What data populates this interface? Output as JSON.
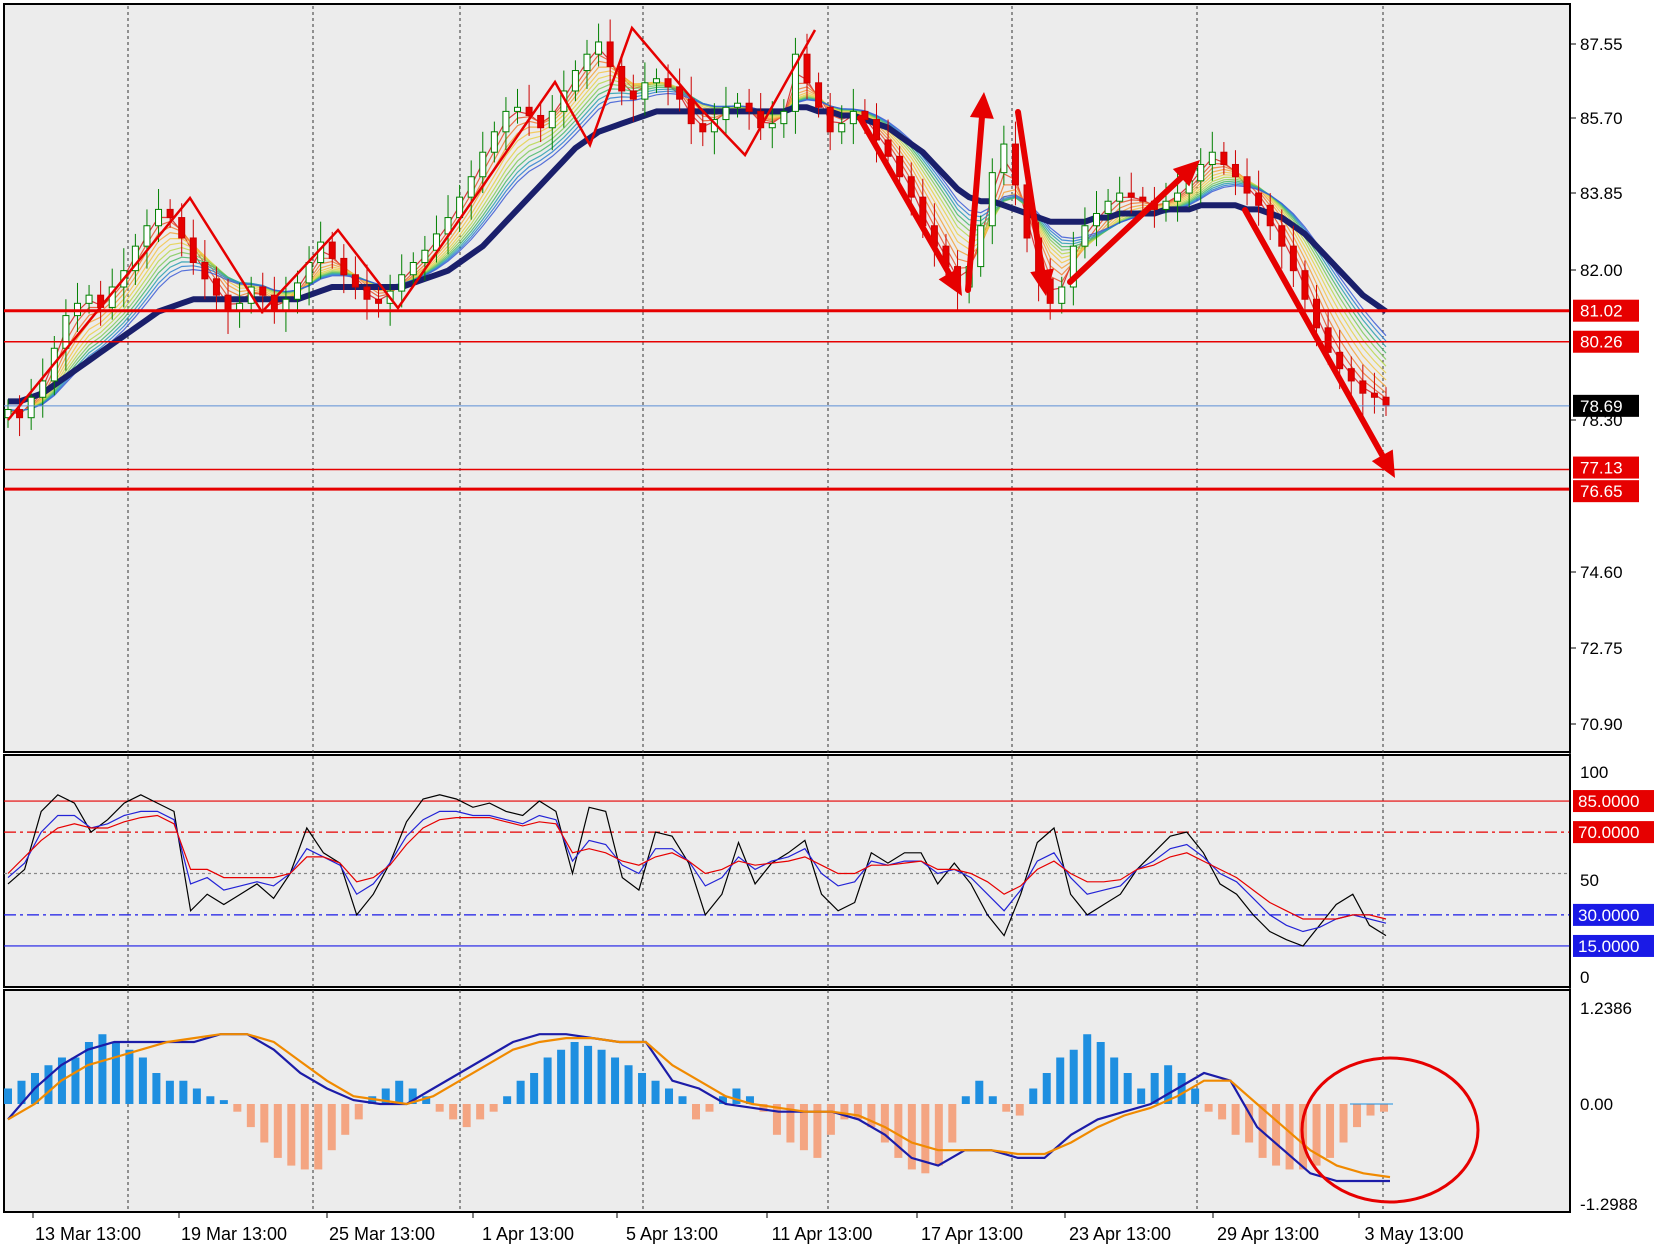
{
  "chart_data": [
    {
      "name": "price",
      "type": "candlestick",
      "x_ticks": [
        "13 Mar 13:00",
        "19 Mar 13:00",
        "25 Mar 13:00",
        "1 Apr 13:00",
        "5 Apr 13:00",
        "11 Apr 13:00",
        "17 Apr 13:00",
        "23 Apr 13:00",
        "29 Apr 13:00",
        "3 May 13:00"
      ],
      "y_ticks": [
        "87.55",
        "85.70",
        "83.85",
        "82.00",
        "78.30",
        "74.60",
        "72.75",
        "70.90"
      ],
      "ylim": [
        69.9,
        88.6
      ],
      "current_price": {
        "value": 78.69,
        "label": "78.69",
        "color": "#5b8fd6"
      },
      "levels": [
        {
          "value": 81.02,
          "label": "81.02",
          "color": "#e60000",
          "thick": true
        },
        {
          "value": 80.26,
          "label": "80.26",
          "color": "#e60000",
          "thick": false
        },
        {
          "value": 77.13,
          "label": "77.13",
          "color": "#e60000",
          "thick": false
        },
        {
          "value": 76.65,
          "label": "76.65",
          "color": "#e60000",
          "thick": true
        }
      ],
      "close_series": [
        78.6,
        78.4,
        78.9,
        79.3,
        80.1,
        80.9,
        81.2,
        81.4,
        81.1,
        81.6,
        82.0,
        82.6,
        83.1,
        83.5,
        83.3,
        82.8,
        82.2,
        81.8,
        81.4,
        81.0,
        81.2,
        81.6,
        81.4,
        81.0,
        81.3,
        81.7,
        82.2,
        82.7,
        82.3,
        81.9,
        81.6,
        81.3,
        81.2,
        81.5,
        81.9,
        82.2,
        82.5,
        82.9,
        83.3,
        83.8,
        84.3,
        84.9,
        85.4,
        85.9,
        86.0,
        85.8,
        85.5,
        85.9,
        86.4,
        86.9,
        87.3,
        87.6,
        87.0,
        86.4,
        86.2,
        86.6,
        86.7,
        86.5,
        86.2,
        85.6,
        85.4,
        85.7,
        86.0,
        86.1,
        85.9,
        85.5,
        85.6,
        85.9,
        87.3,
        86.6,
        86.0,
        85.4,
        85.6,
        85.9,
        85.7,
        85.2,
        84.8,
        84.3,
        83.8,
        83.1,
        82.6,
        82.1,
        81.6,
        82.1,
        83.1,
        84.4,
        85.1,
        84.1,
        82.8,
        81.8,
        81.2,
        81.6,
        82.6,
        83.1,
        83.4,
        83.7,
        83.9,
        83.8,
        83.7,
        83.5,
        83.7,
        83.9,
        84.2,
        84.6,
        84.9,
        84.6,
        84.3,
        83.9,
        83.6,
        83.1,
        82.6,
        82.0,
        81.3,
        80.6,
        80.0,
        79.6,
        79.3,
        79.0,
        78.9,
        78.69
      ],
      "ema_series": [
        78.8,
        78.8,
        78.9,
        79.0,
        79.2,
        79.4,
        79.6,
        79.8,
        80.0,
        80.2,
        80.4,
        80.6,
        80.8,
        81.0,
        81.1,
        81.2,
        81.3,
        81.3,
        81.3,
        81.3,
        81.3,
        81.3,
        81.3,
        81.3,
        81.3,
        81.3,
        81.4,
        81.5,
        81.6,
        81.6,
        81.6,
        81.6,
        81.6,
        81.6,
        81.6,
        81.7,
        81.8,
        81.9,
        82.0,
        82.2,
        82.4,
        82.6,
        82.9,
        83.2,
        83.5,
        83.8,
        84.1,
        84.4,
        84.7,
        85.0,
        85.2,
        85.4,
        85.5,
        85.6,
        85.7,
        85.8,
        85.9,
        85.9,
        85.9,
        85.9,
        85.9,
        85.9,
        85.9,
        85.9,
        85.9,
        85.9,
        85.9,
        85.9,
        86.0,
        86.0,
        85.9,
        85.9,
        85.8,
        85.8,
        85.7,
        85.6,
        85.5,
        85.3,
        85.1,
        84.9,
        84.6,
        84.3,
        84.0,
        83.8,
        83.7,
        83.7,
        83.6,
        83.5,
        83.4,
        83.3,
        83.2,
        83.2,
        83.2,
        83.2,
        83.3,
        83.3,
        83.4,
        83.4,
        83.4,
        83.4,
        83.5,
        83.5,
        83.5,
        83.6,
        83.6,
        83.6,
        83.6,
        83.5,
        83.5,
        83.4,
        83.3,
        83.1,
        82.9,
        82.6,
        82.3,
        82.0,
        81.7,
        81.4,
        81.2,
        81.0
      ],
      "annotations": [
        "zigzag",
        "arrows"
      ]
    },
    {
      "name": "stochastic",
      "type": "line",
      "y_ticks": [
        "100",
        "50",
        "0"
      ],
      "ylim": [
        0,
        100
      ],
      "levels": [
        {
          "value": 85,
          "label": "85.0000",
          "color": "#e60000",
          "style": "solid"
        },
        {
          "value": 70,
          "label": "70.0000",
          "color": "#e60000",
          "style": "dashdot"
        },
        {
          "value": 50,
          "label": "",
          "color": "#888888",
          "style": "dotted"
        },
        {
          "value": 30,
          "label": "30.0000",
          "color": "#1a1ae6",
          "style": "dashdot"
        },
        {
          "value": 15,
          "label": "15.0000",
          "color": "#1a1ae6",
          "style": "solid"
        }
      ],
      "series": [
        {
          "name": "main",
          "color": "#000000",
          "values": [
            45,
            52,
            80,
            88,
            84,
            70,
            76,
            84,
            88,
            84,
            80,
            32,
            40,
            35,
            40,
            45,
            38,
            50,
            72,
            60,
            55,
            30,
            40,
            55,
            75,
            86,
            88,
            86,
            82,
            84,
            80,
            78,
            85,
            80,
            50,
            82,
            80,
            48,
            42,
            70,
            68,
            55,
            30,
            40,
            65,
            45,
            55,
            60,
            66,
            40,
            32,
            36,
            60,
            55,
            60,
            60,
            45,
            55,
            45,
            30,
            20,
            40,
            65,
            72,
            40,
            30,
            35,
            40,
            52,
            60,
            68,
            70,
            60,
            45,
            40,
            30,
            22,
            18,
            15,
            25,
            35,
            40,
            25,
            20
          ]
        },
        {
          "name": "signal-1",
          "color": "#2323d6",
          "values": [
            48,
            55,
            70,
            78,
            78,
            72,
            74,
            78,
            80,
            80,
            76,
            45,
            48,
            42,
            44,
            46,
            44,
            50,
            62,
            58,
            54,
            40,
            45,
            55,
            68,
            76,
            80,
            80,
            78,
            78,
            76,
            74,
            78,
            76,
            56,
            66,
            64,
            54,
            50,
            62,
            62,
            56,
            44,
            48,
            58,
            52,
            56,
            58,
            62,
            50,
            44,
            46,
            56,
            54,
            56,
            56,
            50,
            52,
            48,
            40,
            32,
            42,
            56,
            60,
            48,
            40,
            42,
            44,
            52,
            56,
            62,
            64,
            58,
            50,
            46,
            38,
            30,
            25,
            22,
            24,
            28,
            30,
            28,
            26
          ]
        },
        {
          "name": "signal-2",
          "color": "#e60000",
          "values": [
            50,
            58,
            66,
            72,
            74,
            72,
            72,
            75,
            77,
            78,
            74,
            52,
            52,
            48,
            48,
            48,
            48,
            50,
            58,
            58,
            55,
            46,
            48,
            54,
            64,
            72,
            76,
            77,
            77,
            77,
            75,
            73,
            75,
            74,
            60,
            62,
            60,
            56,
            54,
            58,
            60,
            56,
            50,
            52,
            56,
            54,
            55,
            56,
            58,
            54,
            50,
            50,
            54,
            54,
            55,
            56,
            52,
            52,
            50,
            46,
            40,
            44,
            52,
            56,
            50,
            46,
            46,
            47,
            52,
            54,
            58,
            60,
            56,
            52,
            48,
            42,
            36,
            32,
            28,
            28,
            28,
            30,
            30,
            28
          ]
        }
      ]
    },
    {
      "name": "macd",
      "type": "bar+line",
      "y_ticks": [
        "1.2386",
        "0.00",
        "-1.2988"
      ],
      "ylim": [
        -1.2988,
        1.2386
      ],
      "histogram": [
        0.2,
        0.3,
        0.4,
        0.5,
        0.6,
        0.6,
        0.8,
        0.9,
        0.8,
        0.7,
        0.6,
        0.4,
        0.3,
        0.3,
        0.2,
        0.1,
        0.05,
        -0.1,
        -0.3,
        -0.5,
        -0.7,
        -0.8,
        -0.85,
        -0.85,
        -0.6,
        -0.4,
        -0.2,
        0.1,
        0.2,
        0.3,
        0.2,
        0.1,
        -0.1,
        -0.2,
        -0.3,
        -0.2,
        -0.1,
        0.1,
        0.3,
        0.4,
        0.6,
        0.7,
        0.8,
        0.75,
        0.7,
        0.6,
        0.5,
        0.4,
        0.3,
        0.2,
        0.1,
        -0.2,
        -0.1,
        0.1,
        0.2,
        0.1,
        -0.1,
        -0.4,
        -0.5,
        -0.6,
        -0.7,
        -0.4,
        -0.2,
        -0.2,
        -0.3,
        -0.5,
        -0.7,
        -0.85,
        -0.9,
        -0.8,
        -0.5,
        0.1,
        0.3,
        0.1,
        -0.1,
        -0.15,
        0.2,
        0.4,
        0.6,
        0.7,
        0.9,
        0.8,
        0.6,
        0.4,
        0.2,
        0.4,
        0.5,
        0.4,
        0.2,
        -0.1,
        -0.2,
        -0.4,
        -0.5,
        -0.7,
        -0.8,
        -0.85,
        -0.85,
        -0.8,
        -0.7,
        -0.5,
        -0.3,
        -0.15,
        -0.1
      ],
      "series": [
        {
          "name": "macd",
          "color": "#1c1ca8",
          "values": [
            -0.2,
            0.2,
            0.5,
            0.7,
            0.8,
            0.8,
            0.8,
            0.8,
            0.9,
            0.9,
            0.7,
            0.4,
            0.2,
            0.05,
            0.0,
            0.0,
            0.2,
            0.4,
            0.6,
            0.8,
            0.9,
            0.9,
            0.85,
            0.8,
            0.8,
            0.3,
            0.2,
            0.0,
            -0.05,
            -0.1,
            -0.1,
            -0.1,
            -0.2,
            -0.4,
            -0.7,
            -0.8,
            -0.6,
            -0.6,
            -0.7,
            -0.7,
            -0.4,
            -0.2,
            -0.1,
            0.0,
            0.2,
            0.4,
            0.3,
            -0.3,
            -0.6,
            -0.9,
            -1.0,
            -1.0,
            -1.0
          ]
        },
        {
          "name": "signal",
          "color": "#f08a00",
          "values": [
            -0.2,
            0.0,
            0.3,
            0.5,
            0.6,
            0.7,
            0.8,
            0.85,
            0.9,
            0.9,
            0.8,
            0.55,
            0.3,
            0.1,
            0.05,
            0.0,
            0.1,
            0.3,
            0.5,
            0.7,
            0.8,
            0.85,
            0.85,
            0.8,
            0.8,
            0.5,
            0.3,
            0.1,
            0.0,
            -0.05,
            -0.1,
            -0.1,
            -0.15,
            -0.3,
            -0.5,
            -0.6,
            -0.6,
            -0.6,
            -0.65,
            -0.65,
            -0.5,
            -0.3,
            -0.15,
            -0.05,
            0.1,
            0.3,
            0.3,
            0.0,
            -0.3,
            -0.6,
            -0.8,
            -0.9,
            -0.95
          ]
        }
      ]
    }
  ],
  "colors": {
    "background": "#ececec",
    "frame": "#000000",
    "grid": "#333333",
    "level_red": "#e60000",
    "level_blue": "#1a1ae6",
    "hist_positive": "#1e8fe0",
    "hist_negative": "#f4a582",
    "zigzag": "#e60000"
  }
}
